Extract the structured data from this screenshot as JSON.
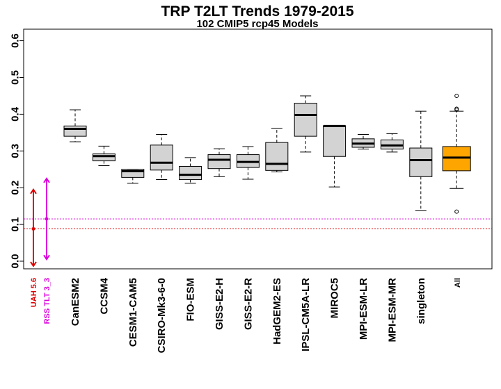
{
  "chart_data": {
    "type": "box",
    "title": "TRP T2LT Trends 1979-2015",
    "subtitle": "102 CMIP5 rcp45 Models",
    "ylim": [
      -0.02,
      0.62
    ],
    "yticks": [
      "0.0",
      "0.1",
      "0.2",
      "0.3",
      "0.4",
      "0.5",
      "0.6"
    ],
    "observations": [
      {
        "label": "UAH 5.6",
        "value": 0.088,
        "low": -0.02,
        "high": 0.195,
        "color": "#dd0000"
      },
      {
        "label": "RSS TLT 3_3",
        "value": 0.115,
        "low": 0.005,
        "high": 0.225,
        "color": "#dd00dd"
      }
    ],
    "boxes": [
      {
        "label": "CanESM2",
        "min": 0.325,
        "q1": 0.34,
        "median": 0.36,
        "q3": 0.368,
        "max": 0.412,
        "outliers": [],
        "color": "#d3d3d3"
      },
      {
        "label": "CCSM4",
        "min": 0.26,
        "q1": 0.273,
        "median": 0.286,
        "q3": 0.292,
        "max": 0.313,
        "outliers": [],
        "color": "#d3d3d3"
      },
      {
        "label": "CESM1-CAM5",
        "min": 0.212,
        "q1": 0.228,
        "median": 0.245,
        "q3": 0.25,
        "max": 0.25,
        "outliers": [],
        "color": "#d3d3d3"
      },
      {
        "label": "CSIRO-Mk3-6-0",
        "min": 0.222,
        "q1": 0.248,
        "median": 0.268,
        "q3": 0.316,
        "max": 0.345,
        "outliers": [],
        "color": "#d3d3d3"
      },
      {
        "label": "FIO-ESM",
        "min": 0.212,
        "q1": 0.222,
        "median": 0.235,
        "q3": 0.258,
        "max": 0.282,
        "outliers": [],
        "color": "#d3d3d3"
      },
      {
        "label": "GISS-E2-H",
        "min": 0.23,
        "q1": 0.252,
        "median": 0.276,
        "q3": 0.29,
        "max": 0.306,
        "outliers": [],
        "color": "#d3d3d3"
      },
      {
        "label": "GISS-E2-R",
        "min": 0.223,
        "q1": 0.255,
        "median": 0.27,
        "q3": 0.29,
        "max": 0.312,
        "outliers": [],
        "color": "#d3d3d3"
      },
      {
        "label": "HadGEM2-ES",
        "min": 0.243,
        "q1": 0.247,
        "median": 0.265,
        "q3": 0.323,
        "max": 0.362,
        "outliers": [],
        "color": "#d3d3d3"
      },
      {
        "label": "IPSL-CM5A-LR",
        "min": 0.297,
        "q1": 0.34,
        "median": 0.398,
        "q3": 0.43,
        "max": 0.45,
        "outliers": [],
        "color": "#d3d3d3"
      },
      {
        "label": "MIROC5",
        "min": 0.202,
        "q1": 0.285,
        "median": 0.368,
        "q3": 0.368,
        "max": 0.368,
        "outliers": [],
        "color": "#d3d3d3"
      },
      {
        "label": "MPI-ESM-LR",
        "min": 0.305,
        "q1": 0.31,
        "median": 0.32,
        "q3": 0.333,
        "max": 0.345,
        "outliers": [],
        "color": "#d3d3d3"
      },
      {
        "label": "MPI-ESM-MR",
        "min": 0.297,
        "q1": 0.305,
        "median": 0.315,
        "q3": 0.33,
        "max": 0.347,
        "outliers": [],
        "color": "#d3d3d3"
      },
      {
        "label": "singleton",
        "min": 0.137,
        "q1": 0.23,
        "median": 0.275,
        "q3": 0.308,
        "max": 0.408,
        "outliers": [],
        "color": "#d3d3d3"
      },
      {
        "label": "All",
        "min": 0.198,
        "q1": 0.246,
        "median": 0.282,
        "q3": 0.312,
        "max": 0.408,
        "outliers": [
          0.45,
          0.415,
          0.412,
          0.135
        ],
        "color": "#ffa500"
      }
    ]
  }
}
